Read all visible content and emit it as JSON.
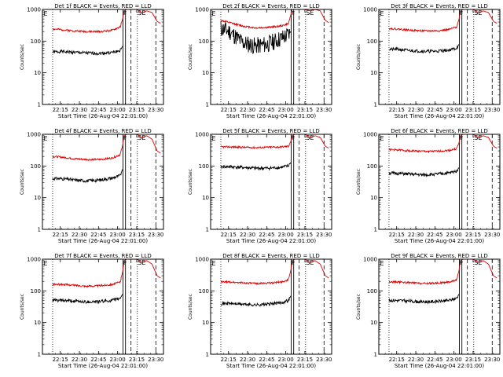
{
  "figure": {
    "xtick_labels": [
      "22:15",
      "22:30",
      "22:45",
      "23:00",
      "23:15",
      "23:30"
    ],
    "xlabel": "Start Time (26-Aug-04 22:01:00)",
    "ylabel": "Counts/sec",
    "ytick_labels": [
      "1",
      "10",
      "100",
      "1000"
    ],
    "flare_marks": {
      "F": "F",
      "SE": "SE",
      "E": "E"
    },
    "colors": {
      "events": "#000000",
      "lld": "#dd0000",
      "background": "#ffffff"
    }
  },
  "chart_data": [
    {
      "type": "line",
      "title": "Det 1f BLACK = Events, RED = LLD",
      "xlabel": "Start Time (26-Aug-04 22:01:00)",
      "ylabel": "Counts/sec",
      "y_scale": "log",
      "ylim": [
        1,
        1000
      ],
      "xlim_minutes_after_start": [
        0,
        95
      ],
      "series": [
        {
          "name": "Events",
          "color": "#000000",
          "x": [
            8,
            15,
            25,
            35,
            45,
            55,
            61,
            63
          ],
          "y": [
            45,
            47,
            44,
            42,
            41,
            44,
            50,
            70
          ]
        },
        {
          "name": "LLD",
          "color": "#dd0000",
          "x": [
            8,
            15,
            25,
            35,
            45,
            55,
            61,
            63,
            64,
            66,
            68,
            70,
            74,
            78,
            82,
            86,
            90,
            93
          ],
          "y": [
            240,
            230,
            210,
            200,
            200,
            220,
            280,
            500,
            900,
            1000,
            1000,
            1000,
            1000,
            800,
            900,
            800,
            420,
            360
          ]
        }
      ]
    },
    {
      "type": "line",
      "title": "Det 2f BLACK = Events, RED = LLD",
      "xlabel": "Start Time (26-Aug-04 22:01:00)",
      "ylabel": "Counts/sec",
      "y_scale": "log",
      "ylim": [
        1,
        1000
      ],
      "xlim_minutes_after_start": [
        0,
        95
      ],
      "series": [
        {
          "name": "Events",
          "color": "#000000",
          "x": [
            8,
            15,
            25,
            35,
            45,
            55,
            61,
            63
          ],
          "y": [
            250,
            200,
            90,
            70,
            80,
            120,
            160,
            200
          ]
        },
        {
          "name": "LLD",
          "color": "#dd0000",
          "x": [
            8,
            15,
            25,
            35,
            45,
            55,
            61,
            63,
            64,
            66,
            68,
            70,
            74,
            78,
            82,
            86,
            90,
            93
          ],
          "y": [
            450,
            380,
            300,
            260,
            270,
            300,
            350,
            700,
            1000,
            1000,
            1000,
            1000,
            1000,
            900,
            1000,
            900,
            450,
            380
          ]
        }
      ]
    },
    {
      "type": "line",
      "title": "Det 3f BLACK = Events, RED = LLD",
      "xlabel": "Start Time (26-Aug-04 22:01:00)",
      "ylabel": "Counts/sec",
      "y_scale": "log",
      "ylim": [
        1,
        1000
      ],
      "xlim_minutes_after_start": [
        0,
        95
      ],
      "series": [
        {
          "name": "Events",
          "color": "#000000",
          "x": [
            8,
            15,
            25,
            35,
            45,
            55,
            61,
            63
          ],
          "y": [
            55,
            55,
            50,
            48,
            48,
            52,
            60,
            80
          ]
        },
        {
          "name": "LLD",
          "color": "#dd0000",
          "x": [
            8,
            15,
            25,
            35,
            45,
            55,
            61,
            63,
            64,
            66,
            68,
            70,
            74,
            78,
            82,
            86,
            90,
            93
          ],
          "y": [
            250,
            240,
            220,
            210,
            210,
            230,
            280,
            500,
            900,
            1000,
            1000,
            1000,
            1000,
            800,
            900,
            800,
            420,
            360
          ]
        }
      ]
    },
    {
      "type": "line",
      "title": "Det 4f BLACK = Events, RED = LLD",
      "xlabel": "Start Time (26-Aug-04 22:01:00)",
      "ylabel": "Counts/sec",
      "y_scale": "log",
      "ylim": [
        1,
        1000
      ],
      "xlim_minutes_after_start": [
        0,
        95
      ],
      "series": [
        {
          "name": "Events",
          "color": "#000000",
          "x": [
            8,
            15,
            25,
            35,
            45,
            55,
            61,
            63
          ],
          "y": [
            40,
            40,
            36,
            34,
            36,
            42,
            50,
            80
          ]
        },
        {
          "name": "LLD",
          "color": "#dd0000",
          "x": [
            8,
            15,
            25,
            35,
            45,
            55,
            61,
            63,
            64,
            66,
            68,
            70,
            74,
            78,
            82,
            86,
            90,
            93
          ],
          "y": [
            200,
            190,
            170,
            160,
            160,
            180,
            230,
            450,
            900,
            1000,
            1000,
            1000,
            1000,
            800,
            900,
            700,
            300,
            250
          ]
        }
      ]
    },
    {
      "type": "line",
      "title": "Det 5f BLACK = Events, RED = LLD",
      "xlabel": "Start Time (26-Aug-04 22:01:00)",
      "ylabel": "Counts/sec",
      "y_scale": "log",
      "ylim": [
        1,
        1000
      ],
      "xlim_minutes_after_start": [
        0,
        95
      ],
      "series": [
        {
          "name": "Events",
          "color": "#000000",
          "x": [
            8,
            15,
            25,
            35,
            45,
            55,
            61,
            63
          ],
          "y": [
            95,
            95,
            90,
            85,
            85,
            90,
            100,
            130
          ]
        },
        {
          "name": "LLD",
          "color": "#dd0000",
          "x": [
            8,
            15,
            25,
            35,
            45,
            55,
            61,
            63,
            64,
            66,
            68,
            70,
            74,
            78,
            82,
            86,
            90,
            93
          ],
          "y": [
            400,
            400,
            390,
            380,
            390,
            400,
            420,
            600,
            900,
            1000,
            1000,
            1000,
            1000,
            800,
            900,
            800,
            420,
            360
          ]
        }
      ]
    },
    {
      "type": "line",
      "title": "Det 6f BLACK = Events, RED = LLD",
      "xlabel": "Start Time (26-Aug-04 22:01:00)",
      "ylabel": "Counts/sec",
      "y_scale": "log",
      "ylim": [
        1,
        1000
      ],
      "xlim_minutes_after_start": [
        0,
        95
      ],
      "series": [
        {
          "name": "Events",
          "color": "#000000",
          "x": [
            8,
            15,
            25,
            35,
            45,
            55,
            61,
            63
          ],
          "y": [
            60,
            58,
            55,
            52,
            55,
            60,
            70,
            90
          ]
        },
        {
          "name": "LLD",
          "color": "#dd0000",
          "x": [
            8,
            15,
            25,
            35,
            45,
            55,
            61,
            63,
            64,
            66,
            68,
            70,
            74,
            78,
            82,
            86,
            90,
            93
          ],
          "y": [
            330,
            320,
            300,
            290,
            290,
            310,
            350,
            550,
            900,
            1000,
            1000,
            1000,
            1000,
            800,
            900,
            800,
            420,
            360
          ]
        }
      ]
    },
    {
      "type": "line",
      "title": "Det 7f BLACK = Events, RED = LLD",
      "xlabel": "Start Time (26-Aug-04 22:01:00)",
      "ylabel": "Counts/sec",
      "y_scale": "log",
      "ylim": [
        1,
        1000
      ],
      "xlim_minutes_after_start": [
        0,
        95
      ],
      "series": [
        {
          "name": "Events",
          "color": "#000000",
          "x": [
            8,
            15,
            25,
            35,
            45,
            55,
            61,
            63
          ],
          "y": [
            50,
            50,
            47,
            45,
            46,
            50,
            58,
            80
          ]
        },
        {
          "name": "LLD",
          "color": "#dd0000",
          "x": [
            8,
            15,
            25,
            35,
            45,
            55,
            61,
            63,
            64,
            66,
            68,
            70,
            74,
            78,
            82,
            86,
            90,
            93
          ],
          "y": [
            160,
            160,
            150,
            140,
            145,
            160,
            190,
            400,
            900,
            1000,
            1000,
            1000,
            1000,
            800,
            900,
            700,
            300,
            250
          ]
        }
      ]
    },
    {
      "type": "line",
      "title": "Det 8f BLACK = Events, RED = LLD",
      "xlabel": "Start Time (26-Aug-04 22:01:00)",
      "ylabel": "Counts/sec",
      "y_scale": "log",
      "ylim": [
        1,
        1000
      ],
      "xlim_minutes_after_start": [
        0,
        95
      ],
      "series": [
        {
          "name": "Events",
          "color": "#000000",
          "x": [
            8,
            15,
            25,
            35,
            45,
            55,
            61,
            63
          ],
          "y": [
            40,
            40,
            38,
            36,
            38,
            42,
            50,
            70
          ]
        },
        {
          "name": "LLD",
          "color": "#dd0000",
          "x": [
            8,
            15,
            25,
            35,
            45,
            55,
            61,
            63,
            64,
            66,
            68,
            70,
            74,
            78,
            82,
            86,
            90,
            93
          ],
          "y": [
            190,
            190,
            180,
            170,
            175,
            190,
            220,
            450,
            900,
            1000,
            1000,
            1000,
            1000,
            800,
            900,
            700,
            300,
            250
          ]
        }
      ]
    },
    {
      "type": "line",
      "title": "Det 9f BLACK = Events, RED = LLD",
      "xlabel": "Start Time (26-Aug-04 22:01:00)",
      "ylabel": "Counts/sec",
      "y_scale": "log",
      "ylim": [
        1,
        1000
      ],
      "xlim_minutes_after_start": [
        0,
        95
      ],
      "series": [
        {
          "name": "Events",
          "color": "#000000",
          "x": [
            8,
            15,
            25,
            35,
            45,
            55,
            61,
            63
          ],
          "y": [
            50,
            50,
            47,
            45,
            46,
            50,
            58,
            80
          ]
        },
        {
          "name": "LLD",
          "color": "#dd0000",
          "x": [
            8,
            15,
            25,
            35,
            45,
            55,
            61,
            63,
            64,
            66,
            68,
            70,
            74,
            78,
            82,
            86,
            90,
            93
          ],
          "y": [
            190,
            190,
            180,
            170,
            175,
            190,
            220,
            450,
            900,
            1000,
            1000,
            1000,
            1000,
            800,
            900,
            700,
            300,
            250
          ]
        }
      ]
    }
  ]
}
